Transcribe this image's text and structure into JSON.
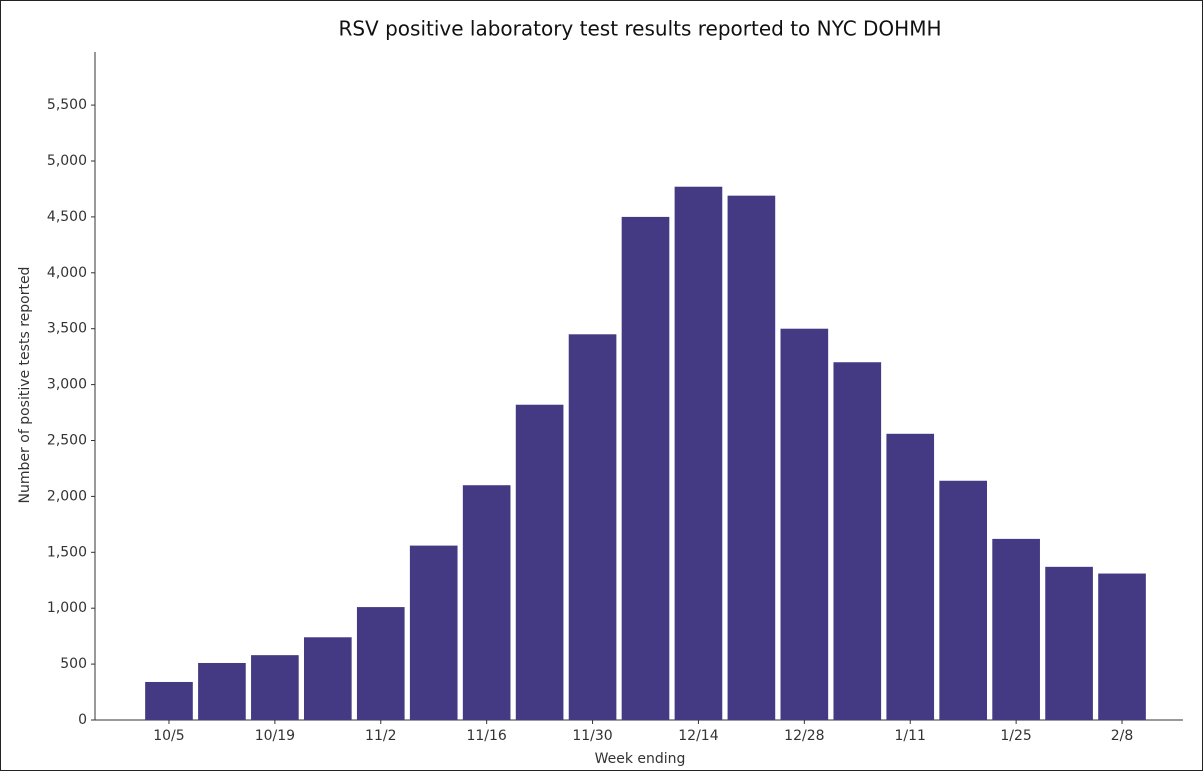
{
  "chart_data": {
    "type": "bar",
    "title": "RSV positive laboratory test results reported to NYC DOHMH",
    "x_label": "Week ending",
    "y_label": "Number of positive tests reported",
    "categories": [
      "10/5",
      null,
      "10/19",
      null,
      "11/2",
      null,
      "11/16",
      null,
      "11/30",
      null,
      "12/14",
      null,
      "12/28",
      null,
      "1/11",
      null,
      "1/25",
      null,
      "2/8"
    ],
    "values": [
      340,
      510,
      580,
      740,
      1010,
      1560,
      2100,
      2820,
      3450,
      4500,
      4770,
      4690,
      3500,
      3200,
      2560,
      2140,
      1620,
      1370,
      1310
    ],
    "color": "#443a83",
    "ylim": [
      0,
      5975
    ],
    "yticks": [
      0,
      500,
      {
        "value": 1000,
        "label": "1,000"
      },
      {
        "value": 1500,
        "label": "1,500"
      },
      {
        "value": 2000,
        "label": "2,000"
      },
      {
        "value": 2500,
        "label": "2,500"
      },
      {
        "value": 3000,
        "label": "3,000"
      },
      {
        "value": 3500,
        "label": "3,500"
      },
      {
        "value": 4000,
        "label": "4,000"
      },
      {
        "value": 4500,
        "label": "4,500"
      },
      {
        "value": 5000,
        "label": "5,000"
      },
      {
        "value": 5500,
        "label": "5,500"
      }
    ],
    "grid": false
  }
}
